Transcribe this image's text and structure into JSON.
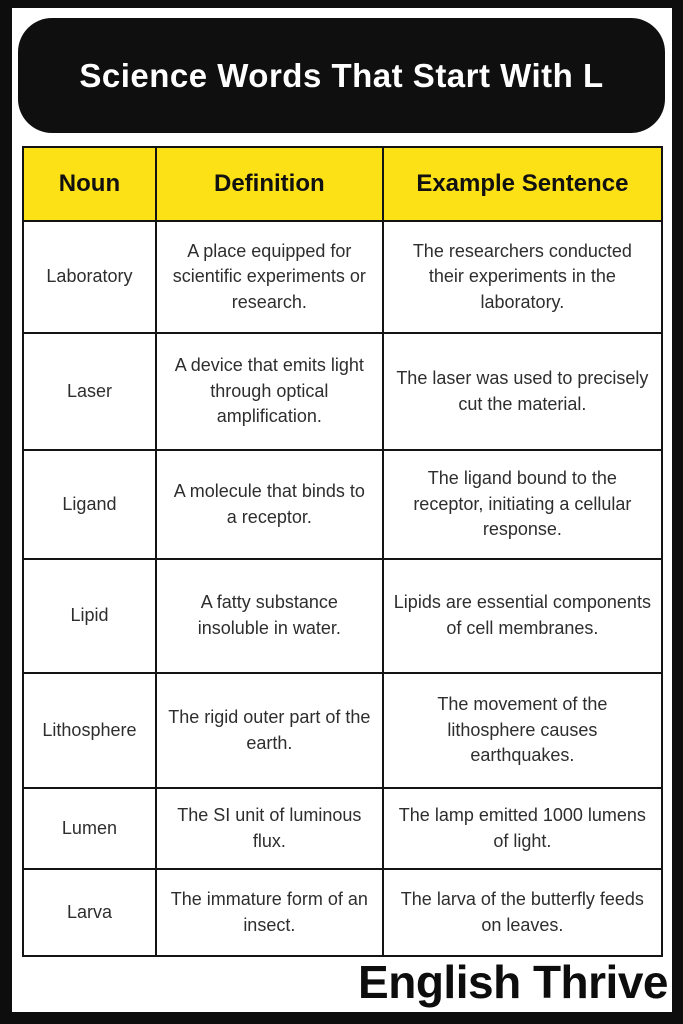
{
  "title": "Science Words That Start With L",
  "table": {
    "headers": [
      "Noun",
      "Definition",
      "Example Sentence"
    ],
    "rows": [
      {
        "noun": "Laboratory",
        "definition": "A place equipped for scientific experiments or research.",
        "example": "The researchers conducted their experiments in the laboratory."
      },
      {
        "noun": "Laser",
        "definition": "A device that emits light through optical amplification.",
        "example": "The laser was used to precisely cut the material."
      },
      {
        "noun": "Ligand",
        "definition": "A molecule that binds to a receptor.",
        "example": "The ligand bound to the receptor, initiating a cellular response."
      },
      {
        "noun": "Lipid",
        "definition": "A fatty substance insoluble in water.",
        "example": "Lipids are essential components of cell membranes."
      },
      {
        "noun": "Lithosphere",
        "definition": "The rigid outer part of the earth.",
        "example": "The movement of the lithosphere causes earthquakes."
      },
      {
        "noun": "Lumen",
        "definition": "The SI unit of luminous flux.",
        "example": "The lamp emitted 1000 lumens of light."
      },
      {
        "noun": "Larva",
        "definition": "The immature form of an insect.",
        "example": "The larva of the butterfly feeds on leaves."
      }
    ]
  },
  "footer": {
    "brand": "English Thrive"
  },
  "colors": {
    "frame": "#0d0d0d",
    "title_bg": "#0f0f0f",
    "title_text": "#ffffff",
    "header_bg": "#fbe116",
    "header_text": "#111111",
    "cell_text": "#2e2e2e",
    "border": "#141414",
    "card_bg": "#ffffff"
  }
}
